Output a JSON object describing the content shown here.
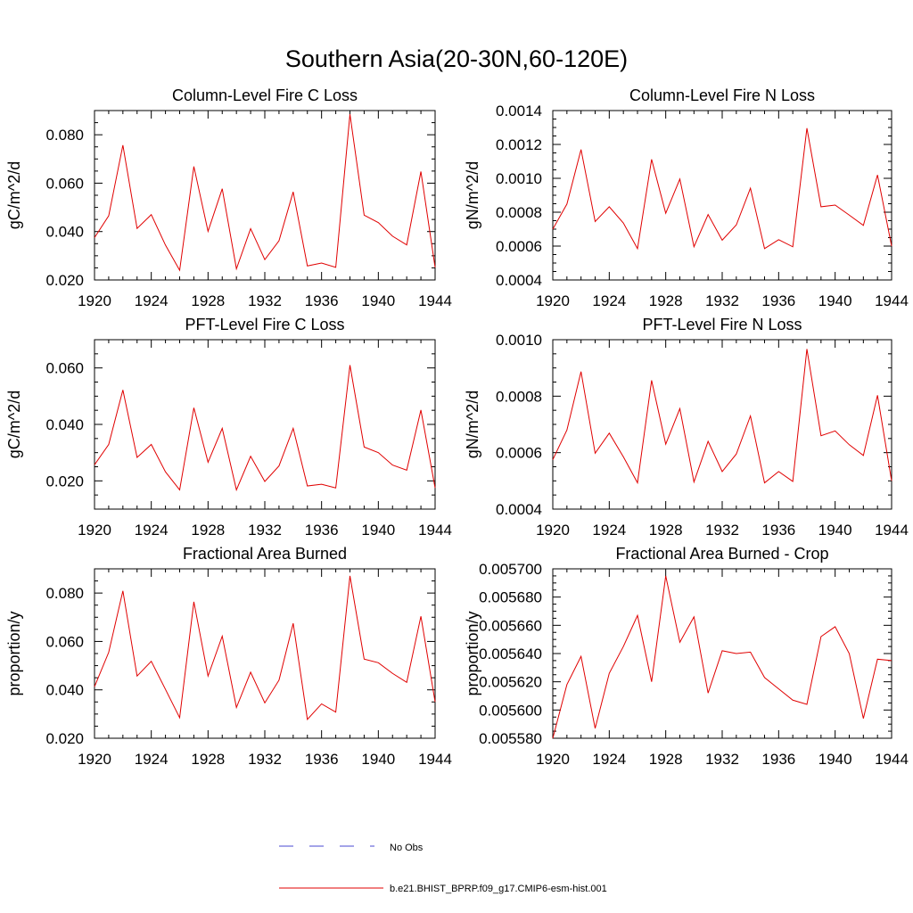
{
  "figure_title": "Southern Asia(20-30N,60-120E)",
  "legend": {
    "obs_label": "No Obs",
    "model_label": "b.e21.BHIST_BPRP.f09_g17.CMIP6-esm-hist.001",
    "obs_color": "#4a4ad0",
    "model_color": "#e00000"
  },
  "chart_data": [
    {
      "type": "line",
      "title": "Column-Level Fire C Loss",
      "ylabel": "gC/m^2/d",
      "xlabel": "",
      "xlim": [
        1920,
        1944
      ],
      "ylim": [
        0.02,
        0.09
      ],
      "xticks": [
        "1920",
        "1924",
        "1928",
        "1932",
        "1936",
        "1940",
        "1944"
      ],
      "yticks": [
        "0.020",
        "0.040",
        "0.060",
        "0.080"
      ],
      "ytick_values": [
        0.02,
        0.04,
        0.06,
        0.08
      ],
      "x": [
        1920,
        1921,
        1922,
        1923,
        1924,
        1925,
        1926,
        1927,
        1928,
        1929,
        1930,
        1931,
        1932,
        1933,
        1934,
        1935,
        1936,
        1937,
        1938,
        1939,
        1940,
        1941,
        1942,
        1943,
        1944
      ],
      "series": [
        {
          "name": "b.e21.BHIST_BPRP.f09_g17.CMIP6-esm-hist.001",
          "color": "#e00000",
          "values": [
            0.0375,
            0.0465,
            0.0757,
            0.0413,
            0.047,
            0.0344,
            0.024,
            0.0669,
            0.0401,
            0.0577,
            0.0246,
            0.0412,
            0.0284,
            0.0362,
            0.0564,
            0.0258,
            0.027,
            0.0252,
            0.0885,
            0.0468,
            0.0437,
            0.0381,
            0.0345,
            0.0648,
            0.0252
          ]
        }
      ]
    },
    {
      "type": "line",
      "title": "Column-Level Fire N Loss",
      "ylabel": "gN/m^2/d",
      "xlabel": "",
      "xlim": [
        1920,
        1944
      ],
      "ylim": [
        0.0004,
        0.0014
      ],
      "xticks": [
        "1920",
        "1924",
        "1928",
        "1932",
        "1936",
        "1940",
        "1944"
      ],
      "yticks": [
        "0.0004",
        "0.0006",
        "0.0008",
        "0.0010",
        "0.0012",
        "0.0014"
      ],
      "ytick_values": [
        0.0004,
        0.0006,
        0.0008,
        0.001,
        0.0012,
        0.0014
      ],
      "x": [
        1920,
        1921,
        1922,
        1923,
        1924,
        1925,
        1926,
        1927,
        1928,
        1929,
        1930,
        1931,
        1932,
        1933,
        1934,
        1935,
        1936,
        1937,
        1938,
        1939,
        1940,
        1941,
        1942,
        1943,
        1944
      ],
      "series": [
        {
          "name": "b.e21.BHIST_BPRP.f09_g17.CMIP6-esm-hist.001",
          "color": "#e00000",
          "values": [
            0.0007,
            0.000848,
            0.00117,
            0.000745,
            0.000832,
            0.000736,
            0.000585,
            0.001112,
            0.000794,
            0.000996,
            0.000596,
            0.000786,
            0.000635,
            0.000725,
            0.000942,
            0.000585,
            0.000638,
            0.000596,
            0.001296,
            0.000832,
            0.000842,
            0.000783,
            0.000722,
            0.00102,
            0.0006
          ]
        }
      ]
    },
    {
      "type": "line",
      "title": "PFT-Level Fire C Loss",
      "ylabel": "gC/m^2/d",
      "xlabel": "",
      "xlim": [
        1920,
        1944
      ],
      "ylim": [
        0.01,
        0.07
      ],
      "xticks": [
        "1920",
        "1924",
        "1928",
        "1932",
        "1936",
        "1940",
        "1944"
      ],
      "yticks": [
        "0.020",
        "0.040",
        "0.060"
      ],
      "ytick_values": [
        0.02,
        0.04,
        0.06
      ],
      "x": [
        1920,
        1921,
        1922,
        1923,
        1924,
        1925,
        1926,
        1927,
        1928,
        1929,
        1930,
        1931,
        1932,
        1933,
        1934,
        1935,
        1936,
        1937,
        1938,
        1939,
        1940,
        1941,
        1942,
        1943,
        1944
      ],
      "series": [
        {
          "name": "b.e21.BHIST_BPRP.f09_g17.CMIP6-esm-hist.001",
          "color": "#e00000",
          "values": [
            0.0257,
            0.0329,
            0.0522,
            0.0283,
            0.0329,
            0.0232,
            0.0168,
            0.0459,
            0.0266,
            0.0386,
            0.0168,
            0.0287,
            0.0198,
            0.0253,
            0.0386,
            0.0182,
            0.0188,
            0.0175,
            0.061,
            0.032,
            0.03,
            0.0256,
            0.0238,
            0.0451,
            0.0175
          ]
        }
      ]
    },
    {
      "type": "line",
      "title": "PFT-Level Fire N Loss",
      "ylabel": "gN/m^2/d",
      "xlabel": "",
      "xlim": [
        1920,
        1944
      ],
      "ylim": [
        0.0004,
        0.001
      ],
      "xticks": [
        "1920",
        "1924",
        "1928",
        "1932",
        "1936",
        "1940",
        "1944"
      ],
      "yticks": [
        "0.0004",
        "0.0006",
        "0.0008",
        "0.0010"
      ],
      "ytick_values": [
        0.0004,
        0.0006,
        0.0008,
        0.001
      ],
      "x": [
        1920,
        1921,
        1922,
        1923,
        1924,
        1925,
        1926,
        1927,
        1928,
        1929,
        1930,
        1931,
        1932,
        1933,
        1934,
        1935,
        1936,
        1937,
        1938,
        1939,
        1940,
        1941,
        1942,
        1943,
        1944
      ],
      "series": [
        {
          "name": "b.e21.BHIST_BPRP.f09_g17.CMIP6-esm-hist.001",
          "color": "#e00000",
          "values": [
            0.000575,
            0.00068,
            0.000887,
            0.000598,
            0.000669,
            0.000585,
            0.000493,
            0.000856,
            0.00063,
            0.000756,
            0.000496,
            0.00064,
            0.000533,
            0.000595,
            0.00073,
            0.000493,
            0.000533,
            0.000498,
            0.000967,
            0.00066,
            0.000677,
            0.000628,
            0.00059,
            0.000803,
            0.0005
          ]
        }
      ]
    },
    {
      "type": "line",
      "title": "Fractional Area Burned",
      "ylabel": "proportion/y",
      "xlabel": "",
      "xlim": [
        1920,
        1944
      ],
      "ylim": [
        0.02,
        0.09
      ],
      "xticks": [
        "1920",
        "1924",
        "1928",
        "1932",
        "1936",
        "1940",
        "1944"
      ],
      "yticks": [
        "0.020",
        "0.040",
        "0.060",
        "0.080"
      ],
      "ytick_values": [
        0.02,
        0.04,
        0.06,
        0.08
      ],
      "x": [
        1920,
        1921,
        1922,
        1923,
        1924,
        1925,
        1926,
        1927,
        1928,
        1929,
        1930,
        1931,
        1932,
        1933,
        1934,
        1935,
        1936,
        1937,
        1938,
        1939,
        1940,
        1941,
        1942,
        1943,
        1944
      ],
      "series": [
        {
          "name": "b.e21.BHIST_BPRP.f09_g17.CMIP6-esm-hist.001",
          "color": "#e00000",
          "values": [
            0.0413,
            0.0555,
            0.0809,
            0.0457,
            0.0518,
            0.0402,
            0.0285,
            0.0764,
            0.0457,
            0.0622,
            0.0327,
            0.0473,
            0.0346,
            0.044,
            0.0675,
            0.0278,
            0.0342,
            0.0308,
            0.0871,
            0.0527,
            0.0512,
            0.0468,
            0.0431,
            0.0704,
            0.035
          ]
        }
      ]
    },
    {
      "type": "line",
      "title": "Fractional Area Burned - Crop",
      "ylabel": "proportion/y",
      "xlabel": "",
      "xlim": [
        1920,
        1944
      ],
      "ylim": [
        0.00558,
        0.0057
      ],
      "xticks": [
        "1920",
        "1924",
        "1928",
        "1932",
        "1936",
        "1940",
        "1944"
      ],
      "yticks": [
        "0.005580",
        "0.005600",
        "0.005620",
        "0.005640",
        "0.005660",
        "0.005680",
        "0.005700"
      ],
      "ytick_values": [
        0.00558,
        0.0056,
        0.00562,
        0.00564,
        0.00566,
        0.00568,
        0.0057
      ],
      "x": [
        1920,
        1921,
        1922,
        1923,
        1924,
        1925,
        1926,
        1927,
        1928,
        1929,
        1930,
        1931,
        1932,
        1933,
        1934,
        1935,
        1936,
        1937,
        1938,
        1939,
        1940,
        1941,
        1942,
        1943,
        1944
      ],
      "series": [
        {
          "name": "b.e21.BHIST_BPRP.f09_g17.CMIP6-esm-hist.001",
          "color": "#e00000",
          "values": [
            0.00558,
            0.005618,
            0.005638,
            0.005587,
            0.005626,
            0.005645,
            0.005667,
            0.00562,
            0.005695,
            0.005648,
            0.005666,
            0.005612,
            0.005642,
            0.00564,
            0.005641,
            0.005623,
            0.005615,
            0.005607,
            0.005604,
            0.005652,
            0.005659,
            0.00564,
            0.005594,
            0.005636,
            0.005635
          ]
        }
      ]
    }
  ]
}
